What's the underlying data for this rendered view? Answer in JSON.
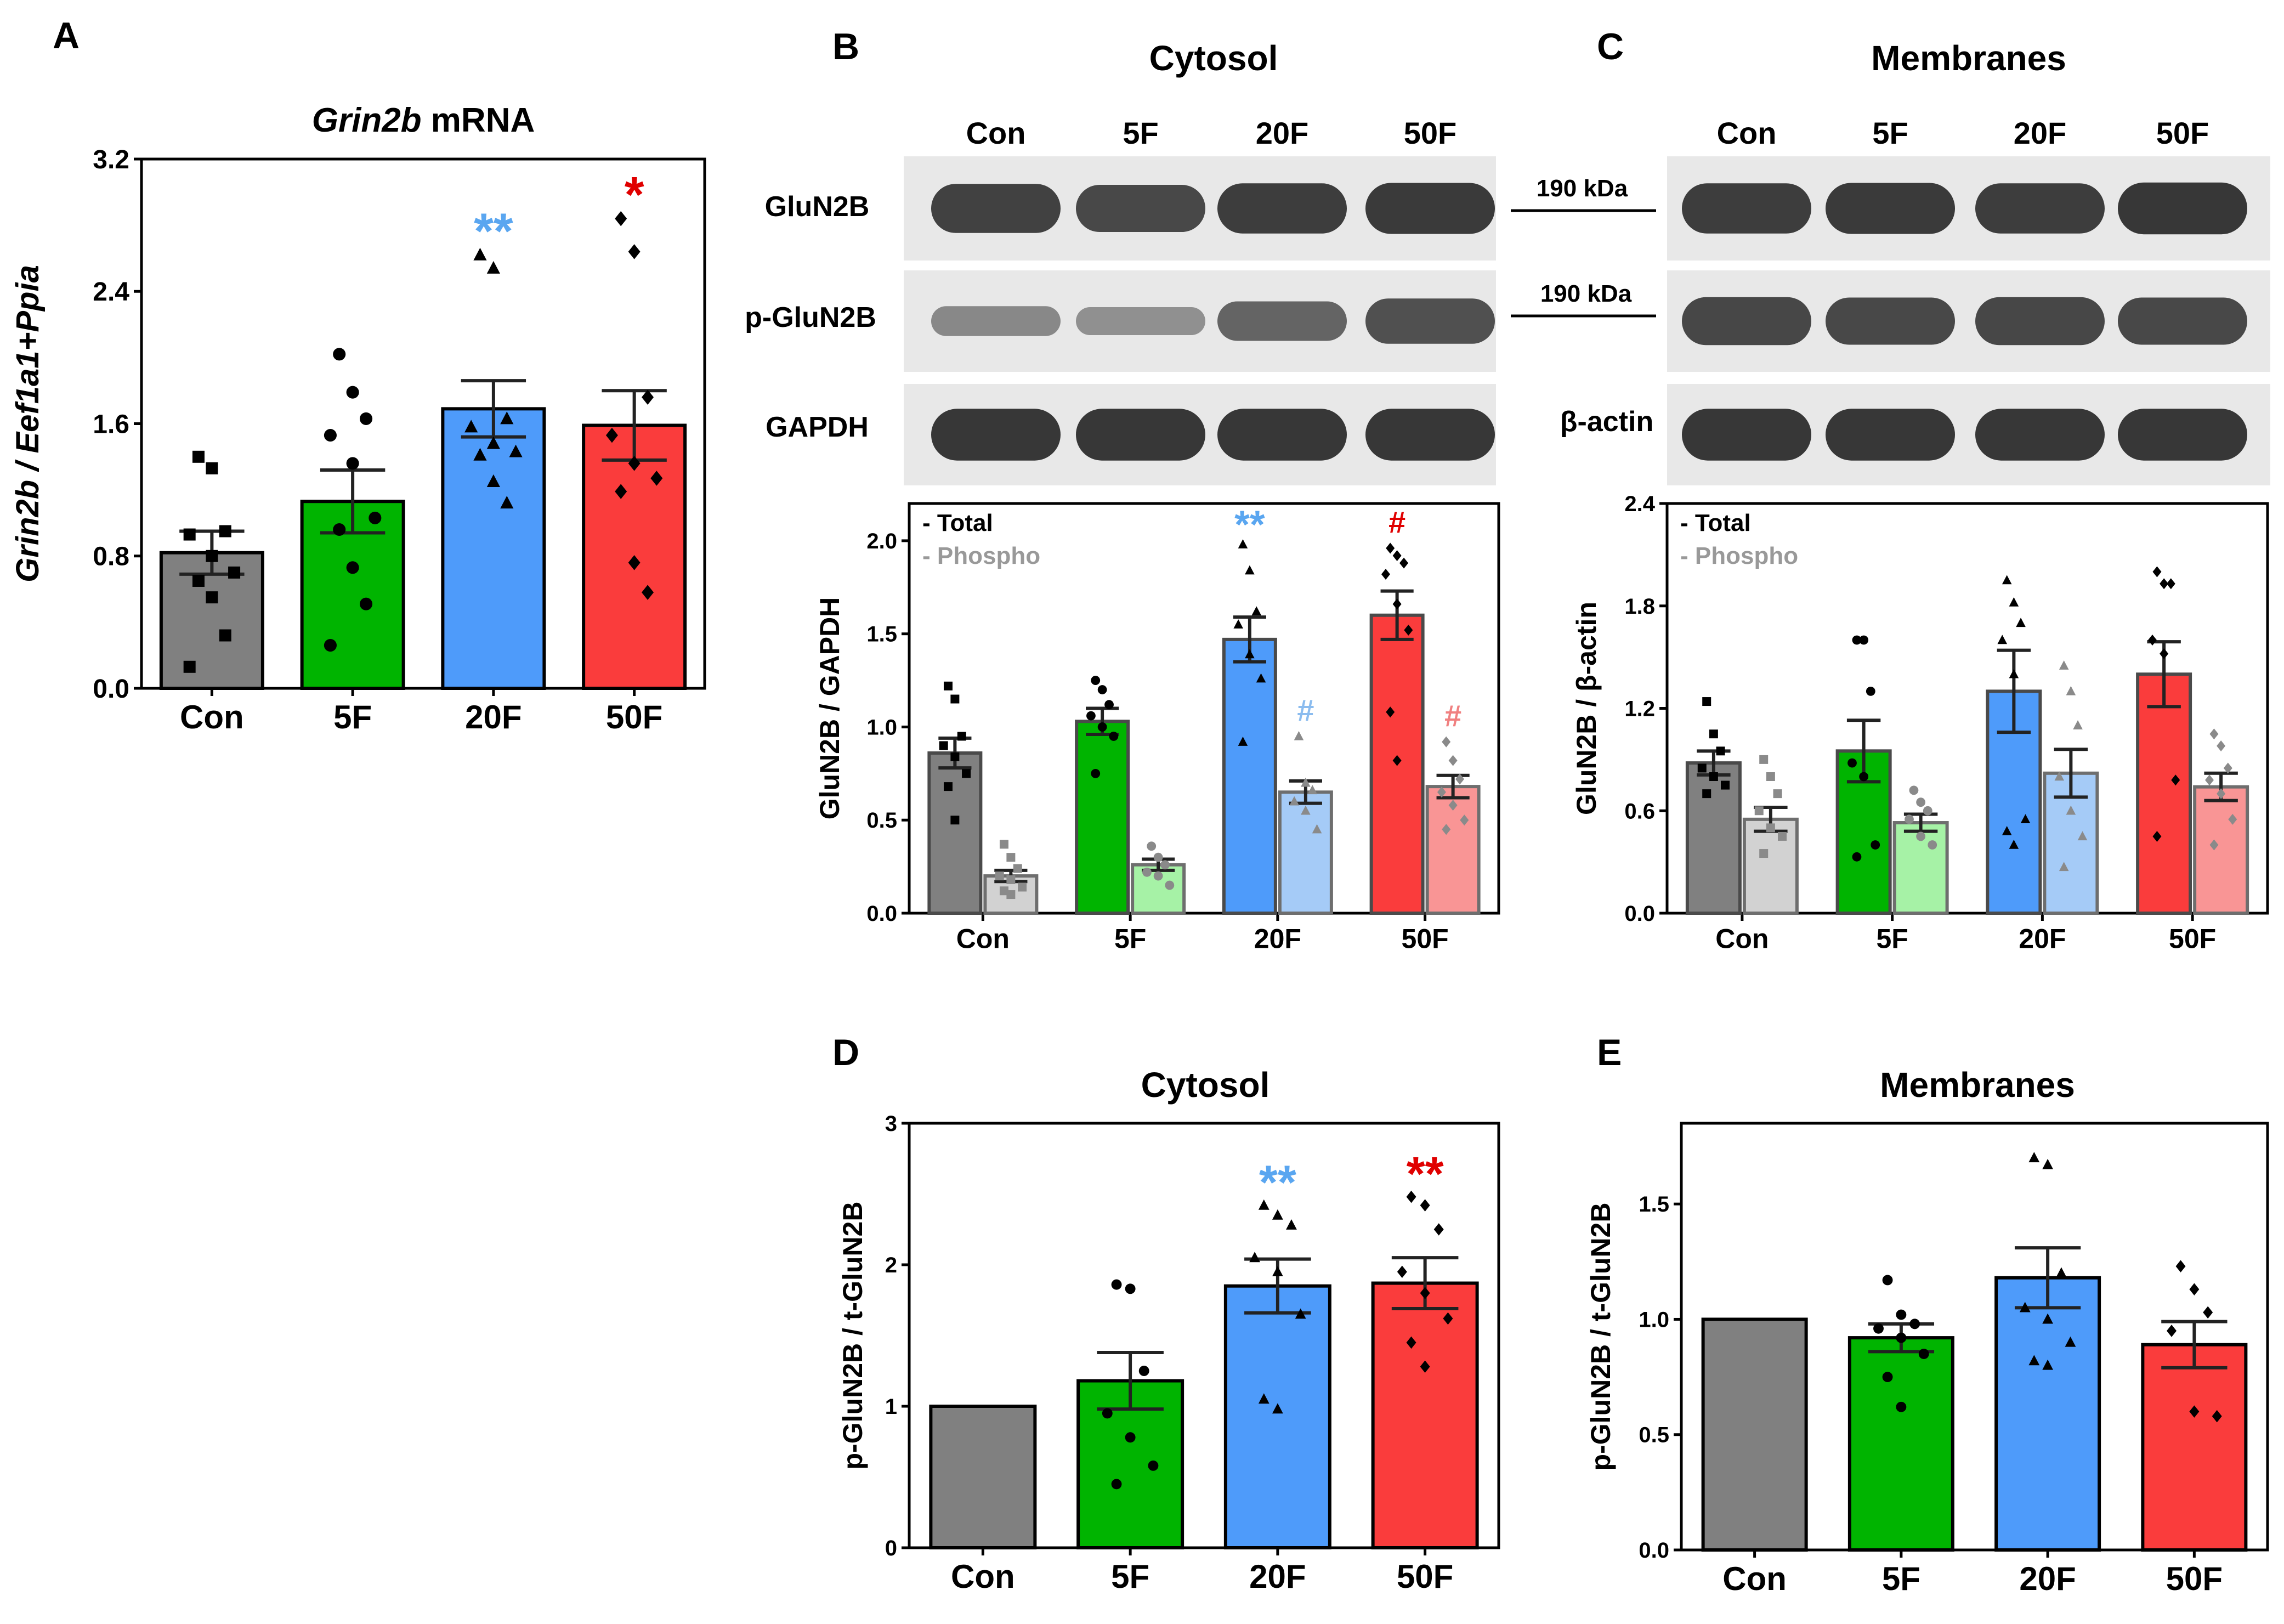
{
  "colors": {
    "con": "#808080",
    "f5": "#00b400",
    "f20": "#4e9bfa",
    "f50": "#fa3c3c",
    "con_light": "#d2d2d2",
    "f5_light": "#a6f2a6",
    "f20_light": "#a5cbf7",
    "f50_light": "#f99595",
    "star_blue": "#5aa6f0",
    "star_red": "#e00000",
    "hash_blue_light": "#8bbcef",
    "hash_red_light": "#f08080",
    "blot_bg": "#e8e8e8",
    "band": "#2c2c2c"
  },
  "panel_letters": {
    "a": "A",
    "b": "B",
    "c": "C",
    "d": "D",
    "e": "E"
  },
  "blots": {
    "cytosol": {
      "title": "Cytosol",
      "lanes": [
        "Con",
        "5F",
        "20F",
        "50F"
      ],
      "rows": [
        {
          "label": "GluN2B",
          "intensity": [
            0.85,
            0.8,
            0.88,
            0.9
          ]
        },
        {
          "label": "p-GluN2B",
          "intensity": [
            0.35,
            0.3,
            0.6,
            0.75
          ]
        },
        {
          "label": "GAPDH",
          "intensity": [
            0.92,
            0.92,
            0.92,
            0.92
          ]
        }
      ]
    },
    "membranes": {
      "title": "Membranes",
      "lanes": [
        "Con",
        "5F",
        "20F",
        "50F"
      ],
      "rows": [
        {
          "label": "",
          "intensity": [
            0.88,
            0.9,
            0.88,
            0.92
          ]
        },
        {
          "label": "",
          "intensity": [
            0.82,
            0.8,
            0.82,
            0.8
          ]
        },
        {
          "label": "β-actin",
          "intensity": [
            0.92,
            0.92,
            0.92,
            0.92
          ]
        }
      ]
    },
    "markers": [
      "190 kDa",
      "190 kDa"
    ]
  },
  "chart_data": [
    {
      "id": "A",
      "type": "bar",
      "title_italic": "Grin2b",
      "title_rest": " mRNA",
      "ylabel": "Grin2b / Eef1a1+Ppia",
      "ylim": [
        0,
        3.2
      ],
      "yticks": [
        "0.0",
        "0.8",
        "1.6",
        "2.4",
        "3.2"
      ],
      "categories": [
        "Con",
        "5F",
        "20F",
        "50F"
      ],
      "series": [
        {
          "name": "mRNA",
          "values": [
            0.82,
            1.13,
            1.69,
            1.59
          ],
          "sem": [
            0.13,
            0.19,
            0.17,
            0.21
          ],
          "colors": [
            "con",
            "f5",
            "f20",
            "f50"
          ],
          "markers": [
            "square",
            "circle",
            "triangle",
            "diamond"
          ],
          "points": [
            [
              1.4,
              1.33,
              0.95,
              0.93,
              0.8,
              0.7,
              0.65,
              0.55,
              0.32,
              0.13
            ],
            [
              2.02,
              1.79,
              1.63,
              1.53,
              1.36,
              1.03,
              0.96,
              0.73,
              0.51,
              0.26
            ],
            [
              2.62,
              2.54,
              1.63,
              1.58,
              1.48,
              1.43,
              1.41,
              1.25,
              1.12
            ],
            [
              2.84,
              2.64,
              1.76,
              1.53,
              1.36,
              1.27,
              1.19,
              0.76,
              0.58
            ]
          ]
        }
      ],
      "annotations": [
        {
          "cat": 2,
          "text": "**",
          "color": "star_blue"
        },
        {
          "cat": 3,
          "text": "*",
          "color": "star_red"
        }
      ]
    },
    {
      "id": "B",
      "type": "bar",
      "ylabel": "GluN2B / GAPDH",
      "ylim": [
        0,
        2.2
      ],
      "yticks": [
        "0.0",
        "0.5",
        "1.0",
        "1.5",
        "2.0"
      ],
      "categories": [
        "Con",
        "5F",
        "20F",
        "50F"
      ],
      "legend": [
        "- Total",
        "- Phospho"
      ],
      "series": [
        {
          "name": "Total",
          "values": [
            0.86,
            1.03,
            1.47,
            1.6
          ],
          "sem": [
            0.08,
            0.07,
            0.12,
            0.13
          ],
          "colors": [
            "con",
            "f5",
            "f20",
            "f50"
          ],
          "markers": [
            "square",
            "circle",
            "triangle",
            "diamond"
          ],
          "points": [
            [
              1.22,
              1.15,
              0.95,
              0.9,
              0.84,
              0.75,
              0.68,
              0.5
            ],
            [
              1.25,
              1.2,
              1.12,
              1.06,
              1.0,
              0.95,
              0.75
            ],
            [
              1.98,
              1.84,
              1.62,
              1.55,
              1.39,
              1.26,
              0.92
            ],
            [
              1.96,
              1.92,
              1.88,
              1.82,
              1.66,
              1.52,
              1.08,
              0.82
            ]
          ]
        },
        {
          "name": "Phospho",
          "values": [
            0.2,
            0.26,
            0.65,
            0.68
          ],
          "sem": [
            0.03,
            0.03,
            0.06,
            0.06
          ],
          "colors": [
            "con_light",
            "f5_light",
            "f20_light",
            "f50_light"
          ],
          "markers": [
            "square",
            "circle",
            "triangle",
            "diamond"
          ],
          "points": [
            [
              0.37,
              0.3,
              0.24,
              0.2,
              0.18,
              0.14,
              0.12,
              0.1
            ],
            [
              0.36,
              0.3,
              0.26,
              0.22,
              0.2,
              0.15
            ],
            [
              0.95,
              0.7,
              0.66,
              0.6,
              0.55,
              0.45
            ],
            [
              0.92,
              0.82,
              0.72,
              0.65,
              0.58,
              0.5,
              0.45
            ]
          ]
        }
      ],
      "annotations": [
        {
          "cat": 2,
          "series": 0,
          "text": "**",
          "color": "star_blue"
        },
        {
          "cat": 3,
          "series": 0,
          "text": "#",
          "color": "star_red"
        },
        {
          "cat": 2,
          "series": 1,
          "text": "#",
          "color": "hash_blue_light"
        },
        {
          "cat": 3,
          "series": 1,
          "text": "#",
          "color": "hash_red_light"
        }
      ]
    },
    {
      "id": "C",
      "type": "bar",
      "ylabel": "GluN2B / β-actin",
      "ylim": [
        0,
        2.4
      ],
      "yticks": [
        "0.0",
        "0.6",
        "1.2",
        "1.8",
        "2.4"
      ],
      "categories": [
        "Con",
        "5F",
        "20F",
        "50F"
      ],
      "legend": [
        "- Total",
        "- Phospho"
      ],
      "series": [
        {
          "name": "Total",
          "values": [
            0.88,
            0.95,
            1.3,
            1.4
          ],
          "sem": [
            0.07,
            0.18,
            0.24,
            0.19
          ],
          "colors": [
            "con",
            "f5",
            "f20",
            "f50"
          ],
          "markers": [
            "square",
            "circle",
            "triangle",
            "diamond"
          ],
          "points": [
            [
              1.24,
              1.05,
              0.95,
              0.85,
              0.8,
              0.75,
              0.7
            ],
            [
              1.6,
              1.6,
              1.3,
              0.88,
              0.8,
              0.4,
              0.33
            ],
            [
              1.95,
              1.82,
              1.7,
              1.6,
              1.4,
              0.55,
              0.48,
              0.4
            ],
            [
              2.0,
              1.93,
              1.93,
              1.6,
              1.52,
              0.78,
              0.45
            ]
          ]
        },
        {
          "name": "Phospho",
          "values": [
            0.55,
            0.53,
            0.82,
            0.74
          ],
          "sem": [
            0.07,
            0.05,
            0.14,
            0.08
          ],
          "colors": [
            "con_light",
            "f5_light",
            "f20_light",
            "f50_light"
          ],
          "markers": [
            "square",
            "circle",
            "triangle",
            "diamond"
          ],
          "points": [
            [
              0.9,
              0.8,
              0.7,
              0.6,
              0.5,
              0.45,
              0.35
            ],
            [
              0.72,
              0.65,
              0.6,
              0.55,
              0.45,
              0.4
            ],
            [
              1.45,
              1.3,
              1.1,
              0.8,
              0.6,
              0.45,
              0.27
            ],
            [
              1.05,
              0.98,
              0.85,
              0.78,
              0.7,
              0.55,
              0.4
            ]
          ]
        }
      ],
      "annotations": []
    },
    {
      "id": "D",
      "type": "bar",
      "title": "Cytosol",
      "ylabel": "p-GluN2B / t-GluN2B",
      "ylim": [
        0,
        3
      ],
      "yticks": [
        "0",
        "1",
        "2",
        "3"
      ],
      "categories": [
        "Con",
        "5F",
        "20F",
        "50F"
      ],
      "series": [
        {
          "name": "ratio",
          "values": [
            1.0,
            1.18,
            1.85,
            1.87
          ],
          "sem": [
            0.0,
            0.2,
            0.19,
            0.18
          ],
          "colors": [
            "con",
            "f5",
            "f20",
            "f50"
          ],
          "markers": [
            "none",
            "circle",
            "triangle",
            "diamond"
          ],
          "points": [
            [],
            [
              1.86,
              1.83,
              1.25,
              0.95,
              0.78,
              0.58,
              0.45
            ],
            [
              2.42,
              2.35,
              2.28,
              2.05,
              1.95,
              1.65,
              1.05,
              0.98
            ],
            [
              2.48,
              2.42,
              2.25,
              1.95,
              1.8,
              1.62,
              1.45,
              1.28
            ]
          ]
        }
      ],
      "annotations": [
        {
          "cat": 2,
          "text": "**",
          "color": "star_blue"
        },
        {
          "cat": 3,
          "text": "**",
          "color": "star_red"
        }
      ]
    },
    {
      "id": "E",
      "type": "bar",
      "title": "Membranes",
      "ylabel": "p-GluN2B / t-GluN2B",
      "ylim": [
        0,
        1.85
      ],
      "yticks": [
        "0.0",
        "0.5",
        "1.0",
        "1.5"
      ],
      "categories": [
        "Con",
        "5F",
        "20F",
        "50F"
      ],
      "series": [
        {
          "name": "ratio",
          "values": [
            1.0,
            0.92,
            1.18,
            0.89
          ],
          "sem": [
            0.0,
            0.06,
            0.13,
            0.1
          ],
          "colors": [
            "con",
            "f5",
            "f20",
            "f50"
          ],
          "markers": [
            "none",
            "circle",
            "triangle",
            "diamond"
          ],
          "points": [
            [],
            [
              1.17,
              1.02,
              0.98,
              0.96,
              0.92,
              0.85,
              0.75,
              0.62
            ],
            [
              1.7,
              1.67,
              1.2,
              1.05,
              1.0,
              0.9,
              0.82,
              0.8
            ],
            [
              1.23,
              1.13,
              1.03,
              0.95,
              0.6,
              0.58
            ]
          ]
        }
      ],
      "annotations": []
    }
  ]
}
